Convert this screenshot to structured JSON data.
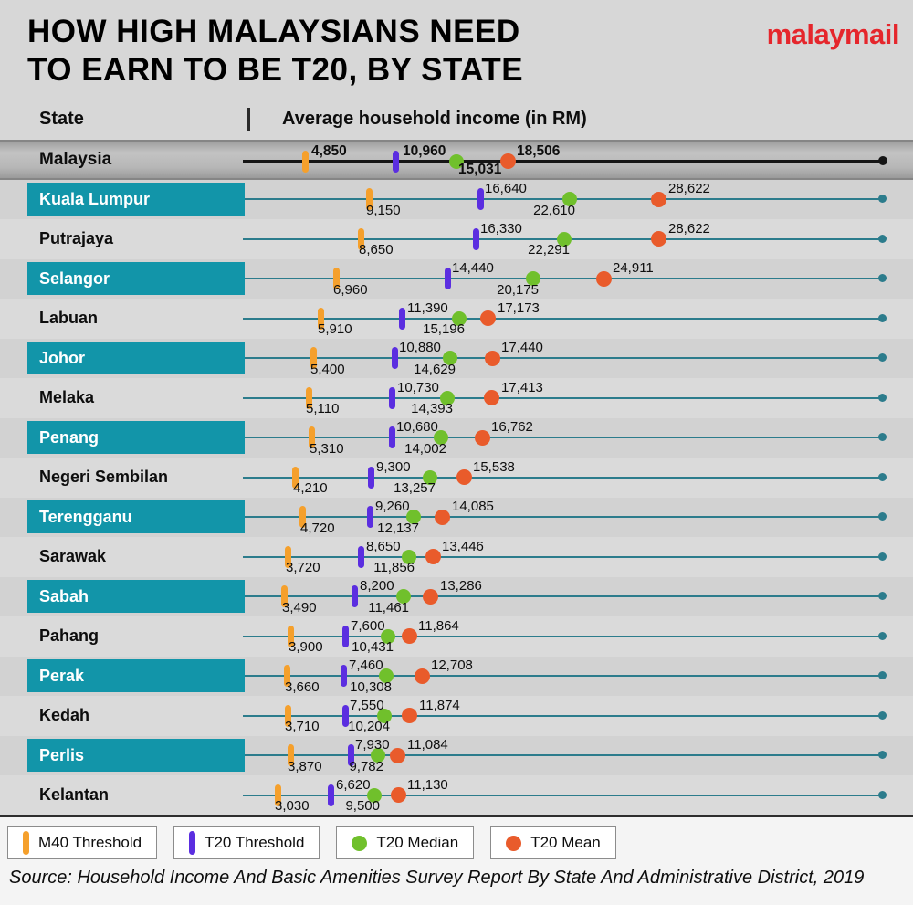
{
  "header": {
    "title_line1": "HOW HIGH MALAYSIANS NEED",
    "title_line2": "TO EARN TO BE T20, BY STATE",
    "logo": "malaymail"
  },
  "columns": {
    "state": "State",
    "income": "Average household income (in RM)"
  },
  "legend": [
    {
      "label": "M40 Threshold",
      "marker": "bar",
      "color": "#f5a02c"
    },
    {
      "label": "T20 Threshold",
      "marker": "bar",
      "color": "#5b2ee0"
    },
    {
      "label": "T20 Median",
      "marker": "dot",
      "color": "#70c02c"
    },
    {
      "label": "T20 Mean",
      "marker": "dot",
      "color": "#e95b2b"
    }
  ],
  "source": "Source: Household Income And Basic Amenities Survey Report By State And Administrative District, 2019",
  "colors": {
    "m40": "#f5a02c",
    "t20": "#5b2ee0",
    "median": "#70c02c",
    "mean": "#e95b2b",
    "teal": "#1295a9",
    "line": "#2c7c8c",
    "logo": "#e5262c"
  },
  "chart_data": {
    "type": "scatter",
    "variant": "horizontal dot plot",
    "title": "How high Malaysians need to earn to be T20, by state",
    "xlabel": "Average household income (in RM)",
    "legend_position": "bottom",
    "highlight": "Malaysia",
    "categories": [
      "Malaysia",
      "Kuala Lumpur",
      "Putrajaya",
      "Selangor",
      "Labuan",
      "Johor",
      "Melaka",
      "Penang",
      "Negeri Sembilan",
      "Terengganu",
      "Sarawak",
      "Sabah",
      "Pahang",
      "Perak",
      "Kedah",
      "Perlis",
      "Kelantan"
    ],
    "series": [
      {
        "name": "M40 Threshold",
        "values": [
          4850,
          9150,
          8650,
          6960,
          5910,
          5400,
          5110,
          5310,
          4210,
          4720,
          3720,
          3490,
          3900,
          3660,
          3710,
          3870,
          3030
        ]
      },
      {
        "name": "T20 Threshold",
        "values": [
          10960,
          16640,
          16330,
          14440,
          11390,
          10880,
          10730,
          10680,
          9300,
          9260,
          8650,
          8200,
          7600,
          7460,
          7550,
          7930,
          6620
        ]
      },
      {
        "name": "T20 Median",
        "values": [
          15031,
          22610,
          22291,
          20175,
          15196,
          14629,
          14393,
          14002,
          13257,
          12137,
          11856,
          11461,
          10431,
          10308,
          10204,
          9782,
          9500
        ]
      },
      {
        "name": "T20 Mean",
        "values": [
          18506,
          28622,
          28622,
          24911,
          17173,
          17440,
          17413,
          16762,
          15538,
          14085,
          13446,
          13286,
          11864,
          12708,
          11874,
          11084,
          11130
        ]
      }
    ]
  }
}
